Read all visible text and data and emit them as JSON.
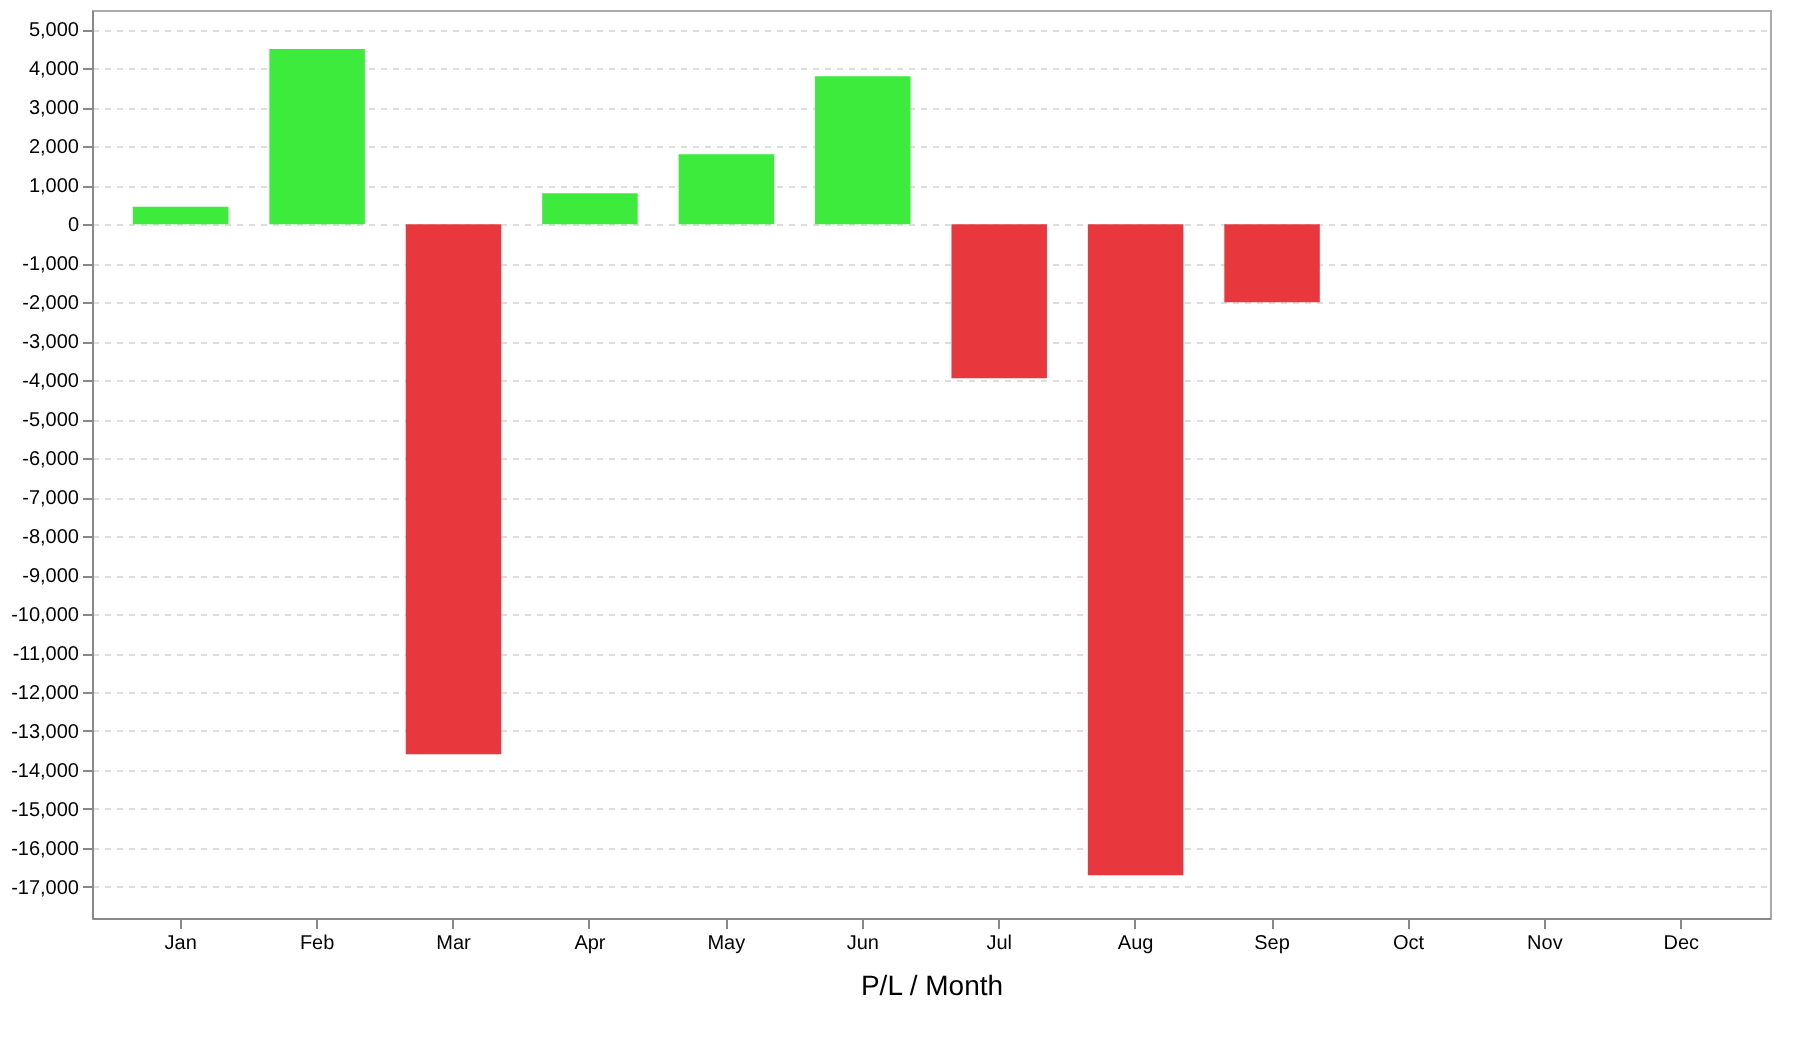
{
  "chart_data": {
    "type": "bar",
    "xlabel": "P/L / Month",
    "categories": [
      "Jan",
      "Feb",
      "Mar",
      "Apr",
      "May",
      "Jun",
      "Jul",
      "Aug",
      "Sep",
      "Oct",
      "Nov",
      "Dec"
    ],
    "values": [
      450,
      4500,
      -13600,
      800,
      1800,
      3800,
      -3950,
      -16700,
      -2000,
      null,
      null,
      null
    ],
    "colors": [
      "#3deb3d",
      "#3deb3d",
      "#e8383d",
      "#3deb3d",
      "#3deb3d",
      "#3deb3d",
      "#e8383d",
      "#e8383d",
      "#e8383d",
      "#3deb3d",
      "#3deb3d",
      "#3deb3d"
    ],
    "ylim": [
      -17800,
      5500
    ],
    "yticks": [
      {
        "value": 5000,
        "label": "5,000"
      },
      {
        "value": 4000,
        "label": "4,000"
      },
      {
        "value": 3000,
        "label": "3,000"
      },
      {
        "value": 2000,
        "label": "2,000"
      },
      {
        "value": 1000,
        "label": "1,000"
      },
      0,
      {
        "value": -1000,
        "label": "-1,000"
      },
      {
        "value": -2000,
        "label": "-2,000"
      },
      {
        "value": -3000,
        "label": "-3,000"
      },
      {
        "value": -4000,
        "label": "-4,000"
      },
      {
        "value": -5000,
        "label": "-5,000"
      },
      {
        "value": -6000,
        "label": "-6,000"
      },
      {
        "value": -7000,
        "label": "-7,000"
      },
      {
        "value": -8000,
        "label": "-8,000"
      },
      {
        "value": -9000,
        "label": "-9,000"
      },
      {
        "value": -10000,
        "label": "-10,000"
      },
      {
        "value": -11000,
        "label": "-11,000"
      },
      {
        "value": -12000,
        "label": "-12,000"
      },
      {
        "value": -13000,
        "label": "-13,000"
      },
      {
        "value": -14000,
        "label": "-14,000"
      },
      {
        "value": -15000,
        "label": "-15,000"
      },
      {
        "value": -16000,
        "label": "-16,000"
      },
      {
        "value": -17000,
        "label": "-17,000"
      }
    ],
    "grid": "y"
  }
}
